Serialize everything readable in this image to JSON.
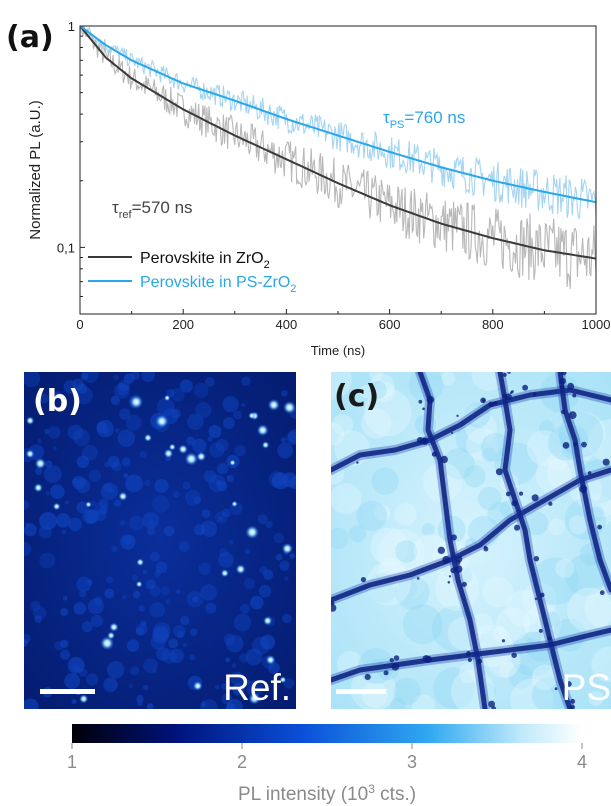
{
  "panel_labels": {
    "a": "(a)",
    "b": "(b)",
    "c": "(c)"
  },
  "image_labels": {
    "b": "Ref.",
    "c": "PS"
  },
  "chart_data": {
    "type": "line",
    "xlabel": "Time (ns)",
    "ylabel": "Normalized PL (a.U.)",
    "yscale": "log",
    "xlim": [
      0,
      1000
    ],
    "ylim": [
      0.05,
      1
    ],
    "x_ticks": [
      "0",
      "200",
      "400",
      "600",
      "800",
      "1000"
    ],
    "y_ticks": [
      {
        "value": 1,
        "label": "1"
      },
      {
        "value": 0.1,
        "label": "0,1"
      }
    ],
    "legend": {
      "placement": "lower-left"
    },
    "annotations": [
      {
        "symbol": "τ",
        "sub": "PS",
        "text": "=760 ns",
        "color": "#2aa7e6"
      },
      {
        "symbol": "τ",
        "sub": "ref",
        "text": "=570 ns",
        "color": "#444444"
      }
    ],
    "series": [
      {
        "name_main": "Perovskite in ZrO",
        "name_sub": "2",
        "color": "#3a3a3a",
        "raw_color": "#b8b8b8",
        "fit": {
          "x": [
            0,
            50,
            100,
            200,
            300,
            400,
            500,
            600,
            700,
            800,
            900,
            1000
          ],
          "y": [
            1.0,
            0.72,
            0.58,
            0.42,
            0.32,
            0.25,
            0.195,
            0.155,
            0.128,
            0.11,
            0.097,
            0.089
          ]
        }
      },
      {
        "name_main": "Perovskite in PS-ZrO",
        "name_sub": "2",
        "color": "#2aa7e6",
        "raw_color": "#a5d5f2",
        "fit": {
          "x": [
            0,
            50,
            100,
            200,
            300,
            400,
            500,
            600,
            700,
            800,
            900,
            1000
          ],
          "y": [
            1.0,
            0.82,
            0.7,
            0.55,
            0.46,
            0.38,
            0.32,
            0.27,
            0.23,
            0.2,
            0.178,
            0.16
          ]
        }
      }
    ]
  },
  "colorbar": {
    "ticks": [
      "1",
      "2",
      "3",
      "4"
    ],
    "label_main": "PL intensity (10",
    "label_sup": "3",
    "label_tail": " cts.)",
    "stops": [
      "#000008",
      "#00127a",
      "#0a4fd8",
      "#2fa9f0",
      "#bfe9fb",
      "#ffffff"
    ]
  }
}
